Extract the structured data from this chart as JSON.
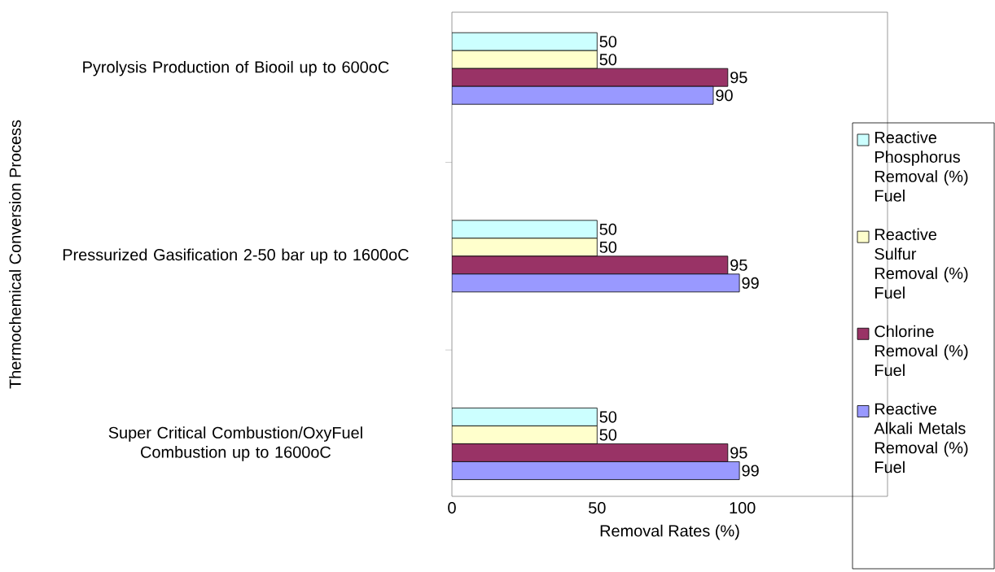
{
  "chart_data": {
    "type": "bar",
    "orientation": "horizontal",
    "xlabel": "Removal Rates (%)",
    "ylabel": "Thermochemical Conversion Process",
    "categories": [
      "Pyrolysis Production of Biooil up to 600oC",
      "Pressurized Gasification 2-50 bar up to 1600oC",
      "Super Critical Combustion/OxyFuel Combustion up to 1600oC"
    ],
    "series": [
      {
        "name": "Reactive Phosphorus Removal (%) Fuel",
        "color": "#ccffff",
        "values": [
          50,
          50,
          50
        ]
      },
      {
        "name": "Reactive Sulfur Removal (%) Fuel",
        "color": "#ffffcc",
        "values": [
          50,
          50,
          50
        ]
      },
      {
        "name": "Chlorine Removal (%) Fuel",
        "color": "#993366",
        "values": [
          95,
          95,
          95
        ]
      },
      {
        "name": "Reactive Alkali Metals Removal (%) Fuel",
        "color": "#9999ff",
        "values": [
          90,
          99,
          99
        ]
      }
    ],
    "xlim": [
      0,
      150
    ],
    "xticks": [
      0,
      50,
      100
    ],
    "data_labels": true,
    "legend": "right",
    "grid": false
  }
}
